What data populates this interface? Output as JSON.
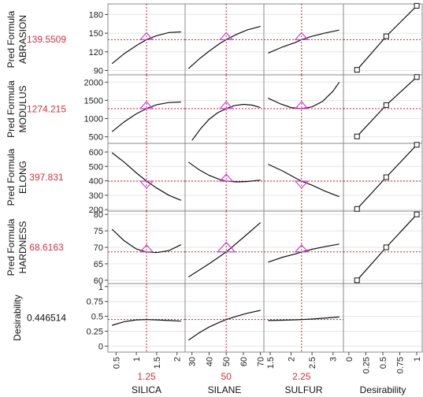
{
  "colors": {
    "current_value": "#cc3344",
    "crosshair": "#cc2233",
    "triangle": "#cc44cc",
    "curve": "#111111",
    "frame": "#888888",
    "grid": "#e6e6e6"
  },
  "chart_data": {
    "type": "line",
    "factors": [
      {
        "name": "SILICA",
        "setting": 1.25,
        "setting_label": "1.25",
        "range": [
          0.3,
          2.2
        ],
        "ticks": [
          0.5,
          1,
          1.5,
          2
        ],
        "tick_labels": [
          "0.5",
          "1",
          "1.5",
          "2"
        ]
      },
      {
        "name": "SILANE",
        "setting": 50,
        "setting_label": "50",
        "range": [
          26,
          72
        ],
        "ticks": [
          30,
          40,
          50,
          60,
          70
        ],
        "tick_labels": [
          "30",
          "40",
          "50",
          "60",
          "70"
        ]
      },
      {
        "name": "SULFUR",
        "setting": 2.25,
        "setting_label": "2.25",
        "range": [
          1.35,
          3.25
        ],
        "ticks": [
          1.5,
          2,
          2.5,
          3
        ],
        "tick_labels": [
          "1.5",
          "2",
          "2.5",
          "3"
        ]
      },
      {
        "name": "Desirability",
        "range": [
          -0.08,
          1.08
        ],
        "ticks": [
          0,
          0.25,
          0.5,
          0.75,
          1
        ],
        "tick_labels": [
          "0",
          "0.25",
          "0.5",
          "0.75",
          "1"
        ]
      }
    ],
    "responses": [
      {
        "name": "ABRASION",
        "label_line1": "Pred Formula",
        "label_line2": "ABRASION",
        "current": "139.5509",
        "current_value": 139.5509,
        "range": [
          83,
          197
        ],
        "ticks": [
          90,
          120,
          150,
          180
        ],
        "tick_labels": [
          "90",
          "120",
          "150",
          "180"
        ],
        "profiles": [
          {
            "x": [
              0.4,
              0.7,
              1.0,
              1.25,
              1.5,
              1.8,
              2.1
            ],
            "y": [
              101,
              117,
              130,
              139.6,
              146,
              151,
              152
            ]
          },
          {
            "x": [
              28,
              34,
              40,
              46,
              50,
              56,
              62,
              70
            ],
            "y": [
              93,
              108,
              121,
              133,
              139.6,
              148,
              155,
              161
            ]
          },
          {
            "x": [
              1.45,
              1.8,
              2.1,
              2.25,
              2.5,
              2.8,
              3.15
            ],
            "y": [
              118,
              128,
              135,
              139.6,
              145,
              150,
              155
            ]
          }
        ],
        "desirability": {
          "x": [
            0.12,
            0.55,
            1.0
          ],
          "y": [
            91,
            145,
            194
          ]
        }
      },
      {
        "name": "MODULUS",
        "label_line1": "Pred Formula",
        "label_line2": "MODULUS",
        "current": "1274.215",
        "current_value": 1274.215,
        "range": [
          320,
          2200
        ],
        "ticks": [
          500,
          1000,
          1500,
          2000
        ],
        "tick_labels": [
          "500",
          "1000",
          "1500",
          "2000"
        ],
        "profiles": [
          {
            "x": [
              0.4,
              0.7,
              1.0,
              1.25,
              1.5,
              1.8,
              2.1
            ],
            "y": [
              640,
              910,
              1130,
              1274,
              1380,
              1440,
              1455
            ]
          },
          {
            "x": [
              30,
              35,
              40,
              45,
              50,
              55,
              60,
              65,
              70
            ],
            "y": [
              400,
              720,
              980,
              1160,
              1274,
              1360,
              1390,
              1370,
              1300
            ]
          },
          {
            "x": [
              1.45,
              1.75,
              2.0,
              2.25,
              2.5,
              2.75,
              3.0,
              3.15
            ],
            "y": [
              1560,
              1400,
              1300,
              1274,
              1320,
              1470,
              1750,
              2000
            ]
          }
        ],
        "desirability": {
          "x": [
            0.12,
            0.55,
            1.0
          ],
          "y": [
            510,
            1370,
            2140
          ]
        }
      },
      {
        "name": "ELONG",
        "label_line1": "Pred Formula",
        "label_line2": "ELONG",
        "current": "397.831",
        "current_value": 397.831,
        "range": [
          190,
          660
        ],
        "ticks": [
          200,
          300,
          400,
          500,
          600
        ],
        "tick_labels": [
          "200",
          "300",
          "400",
          "500",
          "600"
        ],
        "profiles": [
          {
            "x": [
              0.4,
              0.7,
              1.0,
              1.25,
              1.5,
              1.8,
              2.1
            ],
            "y": [
              595,
              530,
              455,
              398,
              350,
              300,
              265
            ]
          },
          {
            "x": [
              28,
              34,
              40,
              46,
              50,
              56,
              62,
              70
            ],
            "y": [
              530,
              478,
              438,
              410,
              398,
              392,
              395,
              405
            ]
          },
          {
            "x": [
              1.45,
              1.8,
              2.1,
              2.25,
              2.5,
              2.8,
              3.15
            ],
            "y": [
              515,
              468,
              420,
              398,
              370,
              330,
              290
            ]
          }
        ],
        "desirability": {
          "x": [
            0.12,
            0.55,
            1.0
          ],
          "y": [
            205,
            425,
            650
          ]
        }
      },
      {
        "name": "HARDNESS",
        "label_line1": "Pred Formula",
        "label_line2": "HARDNESS",
        "current": "68.6163",
        "current_value": 68.6163,
        "range": [
          59,
          81
        ],
        "ticks": [
          60,
          65,
          70,
          75,
          80
        ],
        "tick_labels": [
          "60",
          "65",
          "70",
          "75",
          "80"
        ],
        "profiles": [
          {
            "x": [
              0.4,
              0.7,
              1.0,
              1.25,
              1.5,
              1.8,
              2.1
            ],
            "y": [
              75.5,
              72,
              69.5,
              68.6,
              68.4,
              69,
              70.8
            ]
          },
          {
            "x": [
              28,
              40,
              50,
              60,
              70
            ],
            "y": [
              61,
              65,
              68.6,
              73,
              77.5
            ]
          },
          {
            "x": [
              1.45,
              1.8,
              2.1,
              2.25,
              2.5,
              2.8,
              3.15
            ],
            "y": [
              65.5,
              67,
              68,
              68.6,
              69.4,
              70.2,
              71
            ]
          }
        ],
        "desirability": {
          "x": [
            0.12,
            0.55,
            1.0
          ],
          "y": [
            60,
            70,
            80
          ]
        }
      },
      {
        "name": "Desirability",
        "label_line1": "Desirability",
        "label_line2": "",
        "current": "0.446514",
        "current_value": 0.446514,
        "range": [
          -0.1,
          1.05
        ],
        "ticks": [
          0,
          0.25,
          0.5,
          0.75,
          1
        ],
        "tick_labels": [
          "0",
          "0.25",
          "0.5",
          "0.75",
          "1"
        ],
        "profiles": [
          {
            "x": [
              0.4,
              0.7,
              1.0,
              1.25,
              1.5,
              1.8,
              2.1
            ],
            "y": [
              0.35,
              0.41,
              0.44,
              0.4465,
              0.44,
              0.43,
              0.42
            ]
          },
          {
            "x": [
              28,
              34,
              40,
              46,
              50,
              56,
              62,
              70
            ],
            "y": [
              0.1,
              0.22,
              0.32,
              0.4,
              0.4465,
              0.5,
              0.55,
              0.6
            ]
          },
          {
            "x": [
              1.45,
              1.8,
              2.1,
              2.25,
              2.5,
              2.8,
              3.15
            ],
            "y": [
              0.43,
              0.435,
              0.442,
              0.4465,
              0.455,
              0.47,
              0.49
            ]
          }
        ],
        "desirability": null
      }
    ]
  }
}
